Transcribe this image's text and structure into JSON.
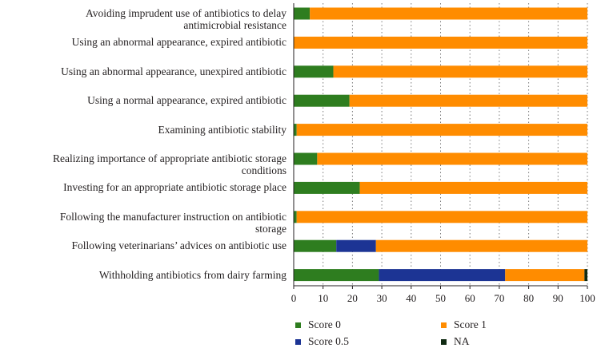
{
  "chart_data": {
    "type": "bar",
    "orientation": "horizontal",
    "stacked": true,
    "categories": [
      "Avoiding imprudent use of antibiotics to delay antimicrobial resistance",
      "Using an abnormal appearance, expired antibiotic",
      "Using an abnormal appearance, unexpired antibiotic",
      "Using a normal appearance, expired antibiotic",
      "Examining antibiotic stability",
      "Realizing importance of appropriate antibiotic storage conditions",
      "Investing for an appropriate antibiotic storage place",
      "Following the manufacturer instruction on antibiotic storage",
      "Following veterinarians’ advices on antibiotic use",
      "Withholding antibiotics from dairy farming"
    ],
    "category_lines": [
      [
        "Avoiding imprudent use of antibiotics to delay",
        "antimicrobial resistance"
      ],
      [
        "Using an abnormal appearance, expired antibiotic"
      ],
      [
        "Using an abnormal appearance, unexpired antibiotic"
      ],
      [
        "Using a normal appearance, expired antibiotic"
      ],
      [
        "Examining antibiotic stability"
      ],
      [
        "Realizing importance of appropriate antibiotic storage",
        "conditions"
      ],
      [
        "Investing for an appropriate antibiotic storage place"
      ],
      [
        "Following the manufacturer instruction on antibiotic",
        "storage"
      ],
      [
        "Following veterinarians’ advices on antibiotic use"
      ],
      [
        "Withholding antibiotics from dairy farming"
      ]
    ],
    "series": [
      {
        "name": "Score 0",
        "color": "#2e7d1f",
        "values": [
          5.5,
          0,
          13.5,
          19,
          1,
          8,
          22.5,
          1,
          14.5,
          29
        ]
      },
      {
        "name": "Score 0.5",
        "color": "#1c3494",
        "values": [
          0,
          0,
          0,
          0,
          0,
          0,
          0,
          0,
          13.5,
          43
        ]
      },
      {
        "name": "Score 1",
        "color": "#ff8c00",
        "values": [
          94.5,
          100,
          86.5,
          81,
          99,
          92,
          77.5,
          99,
          72,
          27
        ]
      },
      {
        "name": "NA",
        "color": "#0f2a12",
        "values": [
          0,
          0,
          0,
          0,
          0,
          0,
          0,
          0,
          0,
          1
        ]
      }
    ],
    "xlim": [
      0,
      100
    ],
    "xticks": [
      "0",
      "10",
      "20",
      "30",
      "40",
      "50",
      "60",
      "70",
      "80",
      "90",
      "100"
    ],
    "grid": "dotted vertical lines",
    "legend_position": "bottom"
  }
}
